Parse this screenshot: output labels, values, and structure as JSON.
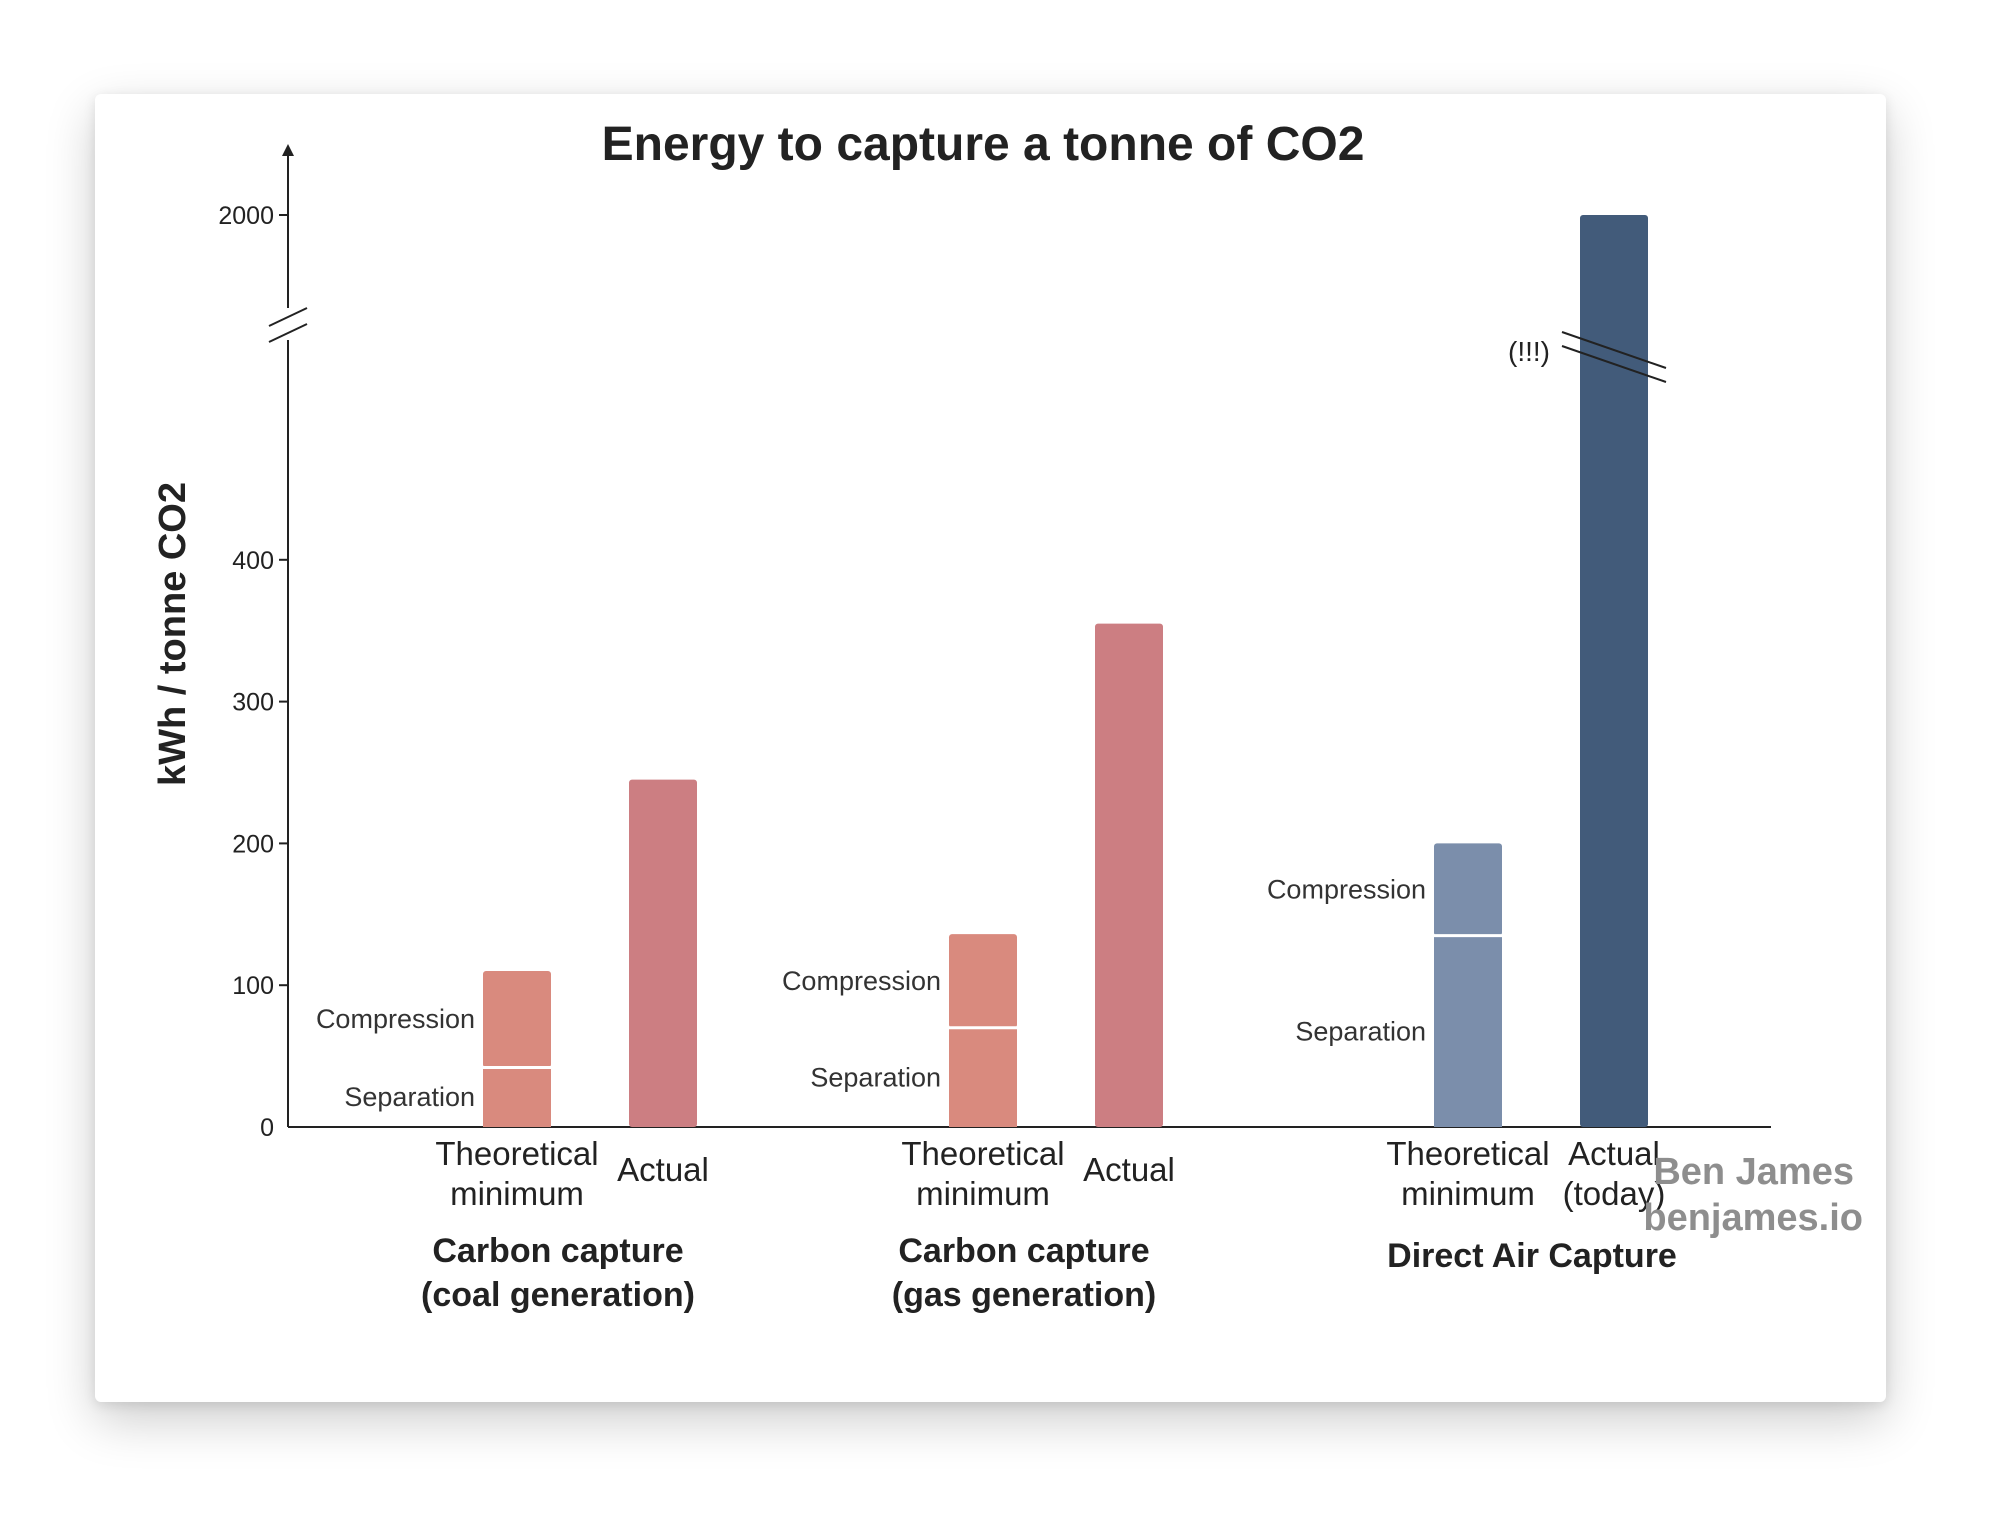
{
  "chart_data": {
    "type": "bar",
    "title": "Energy to capture a tonne of CO2",
    "ylabel": "kWh / tonne CO2",
    "xlabel": "",
    "ylim": [
      0,
      2000
    ],
    "axis_break": [
      500,
      1900
    ],
    "y_ticks": [
      0,
      100,
      200,
      300,
      400,
      2000
    ],
    "groups": [
      {
        "name": [
          "Carbon capture",
          "(coal generation)"
        ],
        "bars": [
          {
            "label": [
              "Theoretical",
              "minimum"
            ],
            "segments": [
              {
                "name": "Separation",
                "value": 42
              },
              {
                "name": "Compression",
                "value": 68
              }
            ],
            "total": 110,
            "color": "#d98a7e"
          },
          {
            "label": [
              "Actual"
            ],
            "value": 245,
            "color": "#cc7e82"
          }
        ]
      },
      {
        "name": [
          "Carbon capture",
          "(gas generation)"
        ],
        "bars": [
          {
            "label": [
              "Theoretical",
              "minimum"
            ],
            "segments": [
              {
                "name": "Separation",
                "value": 70
              },
              {
                "name": "Compression",
                "value": 66
              }
            ],
            "total": 136,
            "color": "#d98a7e"
          },
          {
            "label": [
              "Actual"
            ],
            "value": 355,
            "color": "#cc7e82"
          }
        ]
      },
      {
        "name": [
          "Direct Air Capture"
        ],
        "bars": [
          {
            "label": [
              "Theoretical",
              "minimum"
            ],
            "segments": [
              {
                "name": "Separation",
                "value": 135
              },
              {
                "name": "Compression",
                "value": 65
              }
            ],
            "total": 200,
            "color": "#7b8eab"
          },
          {
            "label": [
              "Actual",
              "(today)"
            ],
            "value": 2000,
            "color": "#425b7a"
          }
        ]
      }
    ],
    "annotations": [
      "(!!!)"
    ],
    "grid": false,
    "legend": "none"
  },
  "credit": {
    "line1": "Ben James",
    "line2": "benjames.io"
  }
}
